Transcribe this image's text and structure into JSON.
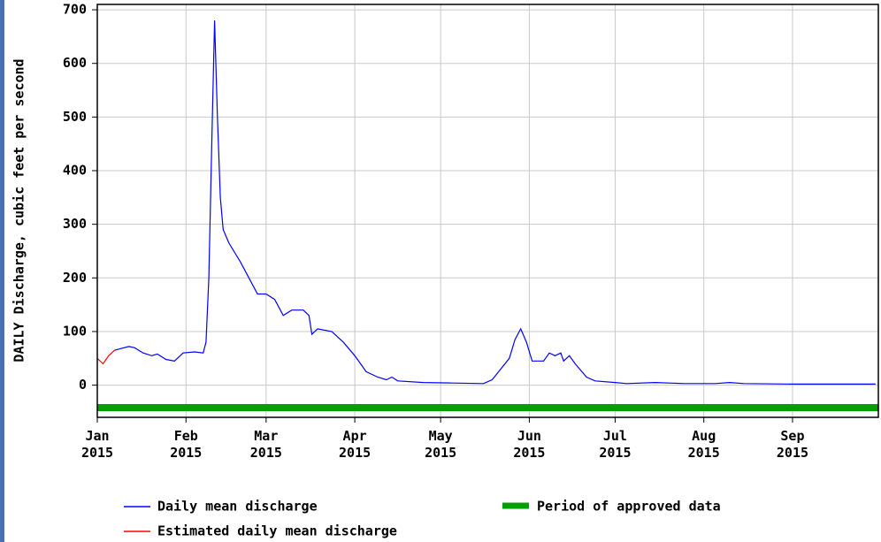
{
  "chart_data": {
    "type": "line",
    "ylabel": "DAILY Discharge, cubic feet per second",
    "ylim": [
      -60,
      710
    ],
    "yticks": [
      0,
      100,
      200,
      300,
      400,
      500,
      600,
      700
    ],
    "xlim": [
      "2015-01",
      "2015-10"
    ],
    "xticks": [
      {
        "value": "2015-01",
        "label": "Jan\n2015"
      },
      {
        "value": "2015-02",
        "label": "Feb\n2015"
      },
      {
        "value": "2015-03",
        "label": "Mar\n2015"
      },
      {
        "value": "2015-04",
        "label": "Apr\n2015"
      },
      {
        "value": "2015-05",
        "label": "May\n2015"
      },
      {
        "value": "2015-06",
        "label": "Jun\n2015"
      },
      {
        "value": "2015-07",
        "label": "Jul\n2015"
      },
      {
        "value": "2015-08",
        "label": "Aug\n2015"
      },
      {
        "value": "2015-09",
        "label": "Sep\n2015"
      }
    ],
    "grid": true,
    "series": [
      {
        "name": "Daily mean discharge",
        "color": "#0000ff",
        "x": [
          "2015-01-07",
          "2015-01-09",
          "2015-01-12",
          "2015-01-14",
          "2015-01-17",
          "2015-01-20",
          "2015-01-22",
          "2015-01-25",
          "2015-01-28",
          "2015-01-31",
          "2015-02-04",
          "2015-02-07",
          "2015-02-08",
          "2015-02-09",
          "2015-02-10",
          "2015-02-11",
          "2015-02-12",
          "2015-02-13",
          "2015-02-14",
          "2015-02-16",
          "2015-02-20",
          "2015-02-23",
          "2015-02-26",
          "2015-03-01",
          "2015-03-04",
          "2015-03-07",
          "2015-03-10",
          "2015-03-14",
          "2015-03-16",
          "2015-03-17",
          "2015-03-19",
          "2015-03-24",
          "2015-03-28",
          "2015-04-01",
          "2015-04-05",
          "2015-04-09",
          "2015-04-12",
          "2015-04-14",
          "2015-04-16",
          "2015-04-25",
          "2015-05-05",
          "2015-05-16",
          "2015-05-19",
          "2015-05-22",
          "2015-05-25",
          "2015-05-27",
          "2015-05-29",
          "2015-05-31",
          "2015-06-02",
          "2015-06-06",
          "2015-06-08",
          "2015-06-10",
          "2015-06-12",
          "2015-06-13",
          "2015-06-15",
          "2015-06-17",
          "2015-06-21",
          "2015-06-24",
          "2015-07-01",
          "2015-07-05",
          "2015-07-15",
          "2015-07-25",
          "2015-08-05",
          "2015-08-10",
          "2015-08-15",
          "2015-09-01",
          "2015-09-30"
        ],
        "values": [
          65,
          68,
          72,
          70,
          60,
          55,
          58,
          48,
          45,
          60,
          62,
          60,
          80,
          200,
          450,
          680,
          500,
          350,
          290,
          265,
          230,
          200,
          170,
          170,
          160,
          130,
          140,
          140,
          130,
          95,
          105,
          100,
          80,
          55,
          25,
          15,
          10,
          15,
          8,
          5,
          4,
          3,
          10,
          30,
          50,
          85,
          105,
          80,
          45,
          45,
          60,
          55,
          60,
          45,
          55,
          40,
          15,
          8,
          5,
          3,
          5,
          3,
          3,
          5,
          3,
          2,
          2
        ]
      },
      {
        "name": "Estimated daily mean discharge",
        "color": "#ff0000",
        "x": [
          "2015-01-01",
          "2015-01-03",
          "2015-01-05",
          "2015-01-07"
        ],
        "values": [
          50,
          40,
          55,
          65
        ]
      }
    ],
    "approved": {
      "name": "Period of approved data",
      "color": "#00a000",
      "start": "2015-01",
      "end": "2015-10"
    }
  }
}
